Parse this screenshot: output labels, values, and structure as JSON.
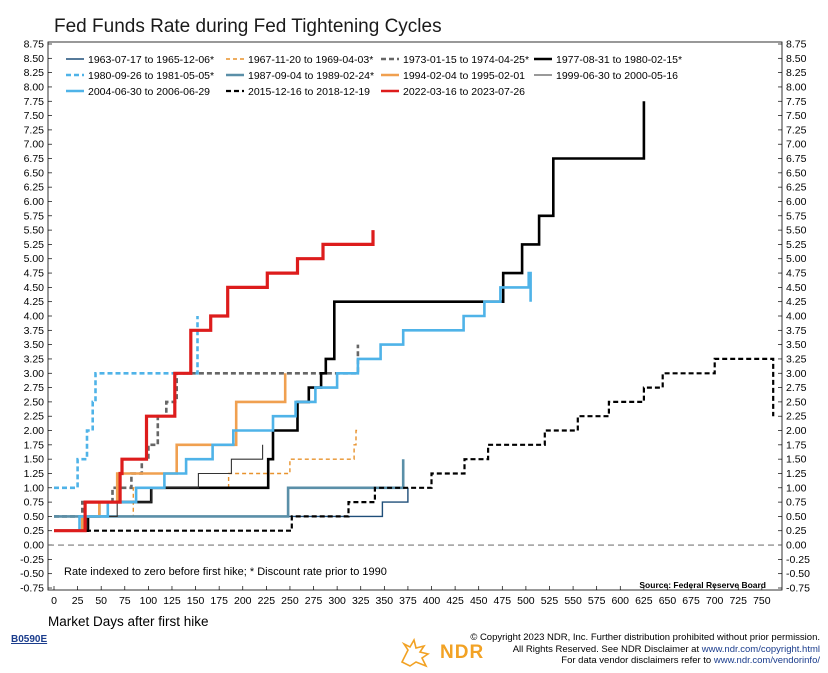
{
  "title": "Fed Funds Rate during Fed Tightening Cycles",
  "footnote": "Rate indexed to zero before first hike; * Discount rate prior to 1990",
  "source": "Source: Federal Reserve Board",
  "code": "B0590E",
  "copyright": {
    "line1": "© Copyright 2023 NDR, Inc. Further distribution prohibited without prior permission.",
    "line2_pre": "All Rights Reserved. See NDR Disclaimer at ",
    "line2_link": "www.ndr.com/copyright.html",
    "line3_pre": "For data vendor disclaimers refer to ",
    "line3_link": "www.ndr.com/vendorinfo/"
  },
  "logo_text": "NDR",
  "logo_icon": "bull-bear-icon",
  "chart_data": {
    "type": "line",
    "title": "Fed Funds Rate during Fed Tightening Cycles",
    "xlabel": "Market Days after first hike",
    "ylabel": "",
    "xlim": [
      0,
      765
    ],
    "ylim": [
      -0.75,
      8.75
    ],
    "x_ticks": [
      0,
      25,
      50,
      75,
      100,
      125,
      150,
      175,
      200,
      225,
      250,
      275,
      300,
      325,
      350,
      375,
      400,
      425,
      450,
      475,
      500,
      525,
      550,
      575,
      600,
      625,
      650,
      675,
      700,
      725,
      750
    ],
    "y_ticks": [
      -0.75,
      -0.5,
      -0.25,
      0,
      0.25,
      0.5,
      0.75,
      1,
      1.25,
      1.5,
      1.75,
      2,
      2.25,
      2.5,
      2.75,
      3,
      3.25,
      3.5,
      3.75,
      4,
      4.25,
      4.5,
      4.75,
      5,
      5.25,
      5.5,
      5.75,
      6,
      6.25,
      6.5,
      6.75,
      7,
      7.25,
      7.5,
      7.75,
      8,
      8.25,
      8.5,
      8.75
    ],
    "y_tick_labels": [
      "-0.75",
      "-0.50",
      "-0.25",
      "0.00",
      "0.25",
      "0.50",
      "0.75",
      "1.00",
      "1.25",
      "1.50",
      "1.75",
      "2.00",
      "2.25",
      "2.50",
      "2.75",
      "3.00",
      "3.25",
      "3.50",
      "3.75",
      "4.00",
      "4.25",
      "4.50",
      "4.75",
      "5.00",
      "5.25",
      "5.50",
      "5.75",
      "6.00",
      "6.25",
      "6.50",
      "6.75",
      "7.00",
      "7.25",
      "7.50",
      "7.75",
      "8.00",
      "8.25",
      "8.50",
      "8.75"
    ],
    "legend_position": "top",
    "zero_line": "dashed",
    "series": [
      {
        "name": "1963-07-17 to 1965-12-06*",
        "color": "#1f4e79",
        "dash": "",
        "width": 1.4,
        "points": [
          [
            0,
            0.5
          ],
          [
            348,
            0.5
          ],
          [
            348,
            0.75
          ],
          [
            375,
            0.75
          ],
          [
            375,
            1.0
          ]
        ]
      },
      {
        "name": "1967-11-20 to 1969-04-03*",
        "color": "#e8922c",
        "dash": "4,3",
        "width": 1.4,
        "points": [
          [
            0,
            0.5
          ],
          [
            84,
            0.5
          ],
          [
            84,
            1.0
          ],
          [
            185,
            1.0
          ],
          [
            185,
            1.25
          ],
          [
            250,
            1.25
          ],
          [
            250,
            1.5
          ],
          [
            318,
            1.5
          ],
          [
            318,
            1.75
          ],
          [
            320,
            1.75
          ],
          [
            320,
            2.0
          ],
          [
            322,
            2.0
          ]
        ]
      },
      {
        "name": "1973-01-15 to 1974-04-25*",
        "color": "#666666",
        "dash": "5,3",
        "width": 2.6,
        "points": [
          [
            0,
            0.5
          ],
          [
            30,
            0.5
          ],
          [
            30,
            0.75
          ],
          [
            62,
            0.75
          ],
          [
            62,
            1.0
          ],
          [
            82,
            1.0
          ],
          [
            82,
            1.25
          ],
          [
            93,
            1.25
          ],
          [
            93,
            1.5
          ],
          [
            100,
            1.5
          ],
          [
            100,
            1.75
          ],
          [
            110,
            1.75
          ],
          [
            110,
            2.25
          ],
          [
            119,
            2.25
          ],
          [
            119,
            2.5
          ],
          [
            130,
            2.5
          ],
          [
            130,
            3.0
          ],
          [
            322,
            3.0
          ],
          [
            322,
            3.5
          ]
        ]
      },
      {
        "name": "1977-08-31 to 1980-02-15*",
        "color": "#000000",
        "dash": "",
        "width": 2.6,
        "points": [
          [
            0,
            0.25
          ],
          [
            36,
            0.25
          ],
          [
            36,
            0.5
          ],
          [
            48,
            0.5
          ],
          [
            48,
            0.75
          ],
          [
            103,
            0.75
          ],
          [
            103,
            1.0
          ],
          [
            227,
            1.0
          ],
          [
            227,
            1.5
          ],
          [
            232,
            1.5
          ],
          [
            232,
            2.0
          ],
          [
            258,
            2.0
          ],
          [
            258,
            2.5
          ],
          [
            270,
            2.5
          ],
          [
            270,
            2.75
          ],
          [
            283,
            2.75
          ],
          [
            283,
            3.0
          ],
          [
            288,
            3.0
          ],
          [
            288,
            3.25
          ],
          [
            297,
            3.25
          ],
          [
            297,
            4.25
          ],
          [
            476,
            4.25
          ],
          [
            476,
            4.75
          ],
          [
            496,
            4.75
          ],
          [
            496,
            5.25
          ],
          [
            514,
            5.25
          ],
          [
            514,
            5.75
          ],
          [
            529,
            5.75
          ],
          [
            529,
            6.75
          ],
          [
            625,
            6.75
          ],
          [
            625,
            7.75
          ]
        ]
      },
      {
        "name": "1980-09-26 to 1981-05-05*",
        "color": "#4fb3e8",
        "dash": "5,3",
        "width": 2.6,
        "points": [
          [
            0,
            1.0
          ],
          [
            25,
            1.0
          ],
          [
            25,
            1.5
          ],
          [
            35,
            1.5
          ],
          [
            35,
            2.0
          ],
          [
            41,
            2.0
          ],
          [
            41,
            2.5
          ],
          [
            44,
            2.5
          ],
          [
            44,
            3.0
          ],
          [
            152,
            3.0
          ],
          [
            152,
            4.0
          ]
        ]
      },
      {
        "name": "1987-09-04 to 1989-02-24*",
        "color": "#5a8fa8",
        "dash": "",
        "width": 2.6,
        "points": [
          [
            0,
            0.5
          ],
          [
            248,
            0.5
          ],
          [
            248,
            1.0
          ],
          [
            370,
            1.0
          ],
          [
            370,
            1.5
          ]
        ]
      },
      {
        "name": "1994-02-04 to 1995-02-01",
        "color": "#f0a050",
        "dash": "",
        "width": 2.6,
        "points": [
          [
            0,
            0.25
          ],
          [
            30,
            0.25
          ],
          [
            30,
            0.5
          ],
          [
            48,
            0.5
          ],
          [
            48,
            0.75
          ],
          [
            67,
            0.75
          ],
          [
            67,
            1.25
          ],
          [
            130,
            1.25
          ],
          [
            130,
            1.75
          ],
          [
            193,
            1.75
          ],
          [
            193,
            2.5
          ],
          [
            245,
            2.5
          ],
          [
            245,
            3.0
          ]
        ]
      },
      {
        "name": "1999-06-30 to 2000-05-16",
        "color": "#333333",
        "dash": "",
        "width": 1.1,
        "points": [
          [
            0,
            0.25
          ],
          [
            35,
            0.25
          ],
          [
            35,
            0.5
          ],
          [
            67,
            0.5
          ],
          [
            67,
            0.75
          ],
          [
            103,
            0.75
          ],
          [
            103,
            1.0
          ],
          [
            153,
            1.0
          ],
          [
            153,
            1.25
          ],
          [
            188,
            1.25
          ],
          [
            188,
            1.5
          ],
          [
            221,
            1.5
          ],
          [
            221,
            1.75
          ]
        ]
      },
      {
        "name": "2004-06-30 to 2006-06-29",
        "color": "#4fb3e8",
        "dash": "",
        "width": 2.6,
        "points": [
          [
            0,
            0.25
          ],
          [
            27,
            0.25
          ],
          [
            27,
            0.5
          ],
          [
            57,
            0.5
          ],
          [
            57,
            0.75
          ],
          [
            87,
            0.75
          ],
          [
            87,
            1.0
          ],
          [
            117,
            1.0
          ],
          [
            117,
            1.25
          ],
          [
            140,
            1.25
          ],
          [
            140,
            1.5
          ],
          [
            168,
            1.5
          ],
          [
            168,
            1.75
          ],
          [
            190,
            1.75
          ],
          [
            190,
            2.0
          ],
          [
            232,
            2.0
          ],
          [
            232,
            2.25
          ],
          [
            256,
            2.25
          ],
          [
            256,
            2.5
          ],
          [
            277,
            2.5
          ],
          [
            277,
            2.75
          ],
          [
            300,
            2.75
          ],
          [
            300,
            3.0
          ],
          [
            322,
            3.0
          ],
          [
            322,
            3.25
          ],
          [
            346,
            3.25
          ],
          [
            346,
            3.5
          ],
          [
            370,
            3.5
          ],
          [
            370,
            3.75
          ],
          [
            434,
            3.75
          ],
          [
            434,
            4.0
          ],
          [
            456,
            4.0
          ],
          [
            456,
            4.25
          ],
          [
            473,
            4.25
          ],
          [
            473,
            4.5
          ],
          [
            503,
            4.5
          ],
          [
            503,
            4.75
          ],
          [
            505,
            4.75
          ],
          [
            505,
            4.25
          ]
        ]
      },
      {
        "name": "2015-12-16 to 2018-12-19",
        "color": "#000000",
        "dash": "5,3",
        "width": 2.2,
        "points": [
          [
            0,
            0.25
          ],
          [
            252,
            0.25
          ],
          [
            252,
            0.5
          ],
          [
            312,
            0.5
          ],
          [
            312,
            0.75
          ],
          [
            340,
            0.75
          ],
          [
            340,
            1.0
          ],
          [
            400,
            1.0
          ],
          [
            400,
            1.25
          ],
          [
            435,
            1.25
          ],
          [
            435,
            1.5
          ],
          [
            460,
            1.5
          ],
          [
            460,
            1.75
          ],
          [
            520,
            1.75
          ],
          [
            520,
            2.0
          ],
          [
            555,
            2.0
          ],
          [
            555,
            2.25
          ],
          [
            588,
            2.25
          ],
          [
            588,
            2.5
          ],
          [
            625,
            2.5
          ],
          [
            625,
            2.75
          ],
          [
            645,
            2.75
          ],
          [
            645,
            3.0
          ],
          [
            700,
            3.0
          ],
          [
            700,
            3.25
          ],
          [
            762,
            3.25
          ],
          [
            762,
            2.25
          ]
        ]
      },
      {
        "name": "2022-03-16 to 2023-07-26",
        "color": "#dd1c1c",
        "dash": "",
        "width": 3.2,
        "points": [
          [
            0,
            0.25
          ],
          [
            33,
            0.25
          ],
          [
            33,
            0.75
          ],
          [
            70,
            0.75
          ],
          [
            70,
            1.25
          ],
          [
            72,
            1.25
          ],
          [
            72,
            1.5
          ],
          [
            98,
            1.5
          ],
          [
            98,
            2.25
          ],
          [
            128,
            2.25
          ],
          [
            128,
            3.0
          ],
          [
            145,
            3.0
          ],
          [
            145,
            3.75
          ],
          [
            166,
            3.75
          ],
          [
            166,
            4.0
          ],
          [
            184,
            4.0
          ],
          [
            184,
            4.5
          ],
          [
            226,
            4.5
          ],
          [
            226,
            4.75
          ],
          [
            258,
            4.75
          ],
          [
            258,
            5.0
          ],
          [
            285,
            5.0
          ],
          [
            285,
            5.25
          ],
          [
            338,
            5.25
          ],
          [
            338,
            5.5
          ]
        ]
      }
    ]
  }
}
